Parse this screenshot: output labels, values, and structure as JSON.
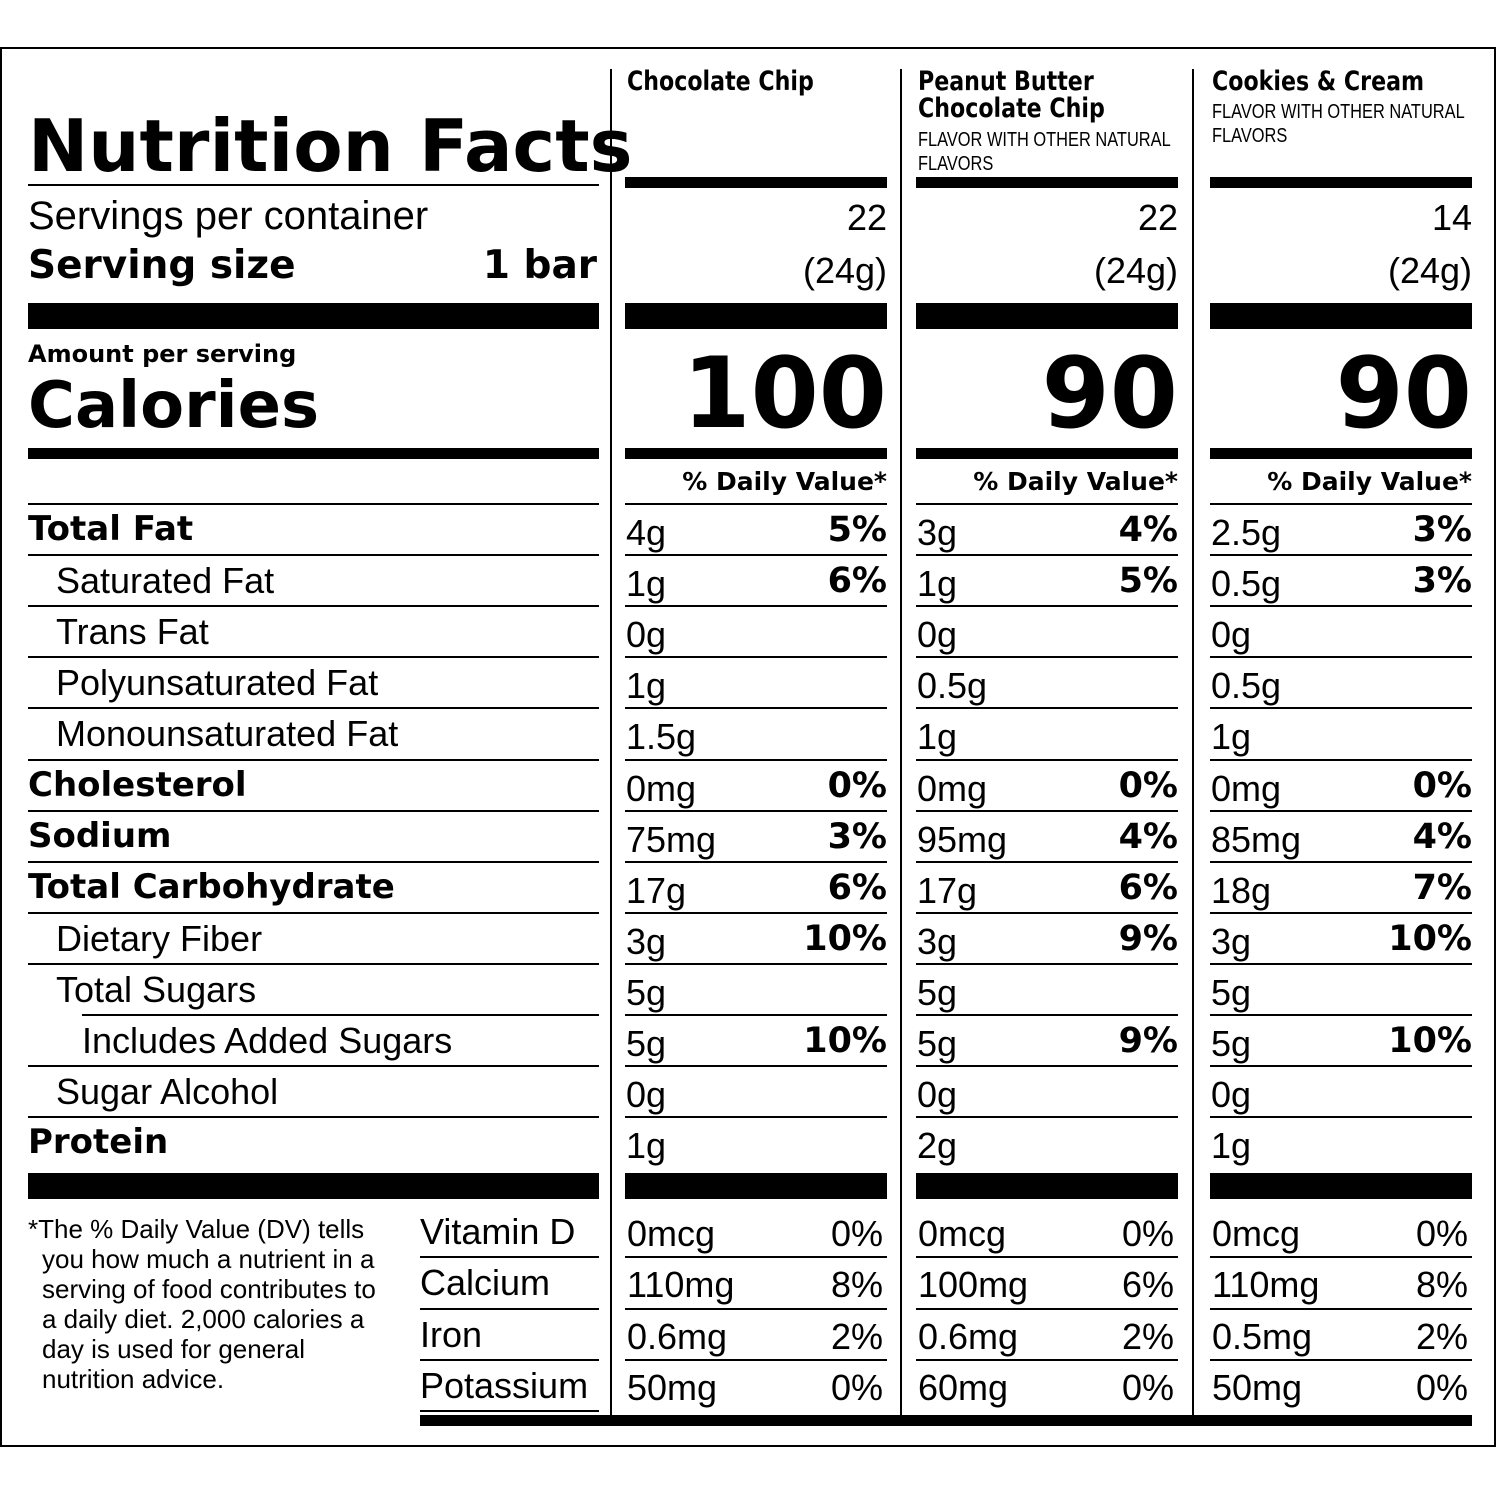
{
  "title": "Nutrition Facts",
  "servings_label": "Servings per container",
  "serving_size_label": "Serving size",
  "serving_size_value": "1 bar",
  "amount_per_serving": "Amount per serving",
  "calories_label": "Calories",
  "daily_value_header": "% Daily Value*",
  "products": [
    {
      "name": "Chocolate  Chip",
      "name2": "",
      "note": "",
      "servings": "22",
      "size": "(24g)",
      "calories": "100"
    },
    {
      "name": "Peanut Butter",
      "name2": "Chocolate Chip",
      "note": "FLAVOR WITH OTHER NATURAL FLAVORS",
      "servings": "22",
      "size": "(24g)",
      "calories": "90"
    },
    {
      "name": "Cookies & Cream",
      "name2": "",
      "note": "FLAVOR WITH OTHER NATURAL FLAVORS",
      "servings": "14",
      "size": "(24g)",
      "calories": "90"
    }
  ],
  "nutrients": [
    {
      "name": "Total Fat",
      "bold": true,
      "indent": 0,
      "values": [
        [
          "4g",
          "5%"
        ],
        [
          "3g",
          "4%"
        ],
        [
          "2.5g",
          "3%"
        ]
      ]
    },
    {
      "name": "Saturated Fat",
      "bold": false,
      "indent": 1,
      "values": [
        [
          "1g",
          "6%"
        ],
        [
          "1g",
          "5%"
        ],
        [
          "0.5g",
          "3%"
        ]
      ]
    },
    {
      "name": "Trans Fat",
      "bold": false,
      "indent": 1,
      "values": [
        [
          "0g",
          ""
        ],
        [
          "0g",
          ""
        ],
        [
          "0g",
          ""
        ]
      ]
    },
    {
      "name": "Polyunsaturated Fat",
      "bold": false,
      "indent": 1,
      "values": [
        [
          "1g",
          ""
        ],
        [
          "0.5g",
          ""
        ],
        [
          "0.5g",
          ""
        ]
      ]
    },
    {
      "name": "Monounsaturated Fat",
      "bold": false,
      "indent": 1,
      "values": [
        [
          "1.5g",
          ""
        ],
        [
          "1g",
          ""
        ],
        [
          "1g",
          ""
        ]
      ]
    },
    {
      "name": "Cholesterol",
      "bold": true,
      "indent": 0,
      "values": [
        [
          "0mg",
          "0%"
        ],
        [
          "0mg",
          "0%"
        ],
        [
          "0mg",
          "0%"
        ]
      ]
    },
    {
      "name": "Sodium",
      "bold": true,
      "indent": 0,
      "values": [
        [
          "75mg",
          "3%"
        ],
        [
          "95mg",
          "4%"
        ],
        [
          "85mg",
          "4%"
        ]
      ]
    },
    {
      "name": "Total Carbohydrate",
      "bold": true,
      "indent": 0,
      "values": [
        [
          "17g",
          "6%"
        ],
        [
          "17g",
          "6%"
        ],
        [
          "18g",
          "7%"
        ]
      ]
    },
    {
      "name": "Dietary Fiber",
      "bold": false,
      "indent": 1,
      "values": [
        [
          "3g",
          "10%"
        ],
        [
          "3g",
          "9%"
        ],
        [
          "3g",
          "10%"
        ]
      ]
    },
    {
      "name": "Total Sugars",
      "bold": false,
      "indent": 1,
      "values": [
        [
          "5g",
          ""
        ],
        [
          "5g",
          ""
        ],
        [
          "5g",
          ""
        ]
      ]
    },
    {
      "name": "Includes Added Sugars",
      "bold": false,
      "indent": 2,
      "values": [
        [
          "5g",
          "10%"
        ],
        [
          "5g",
          "9%"
        ],
        [
          "5g",
          "10%"
        ]
      ]
    },
    {
      "name": "Sugar Alcohol",
      "bold": false,
      "indent": 1,
      "values": [
        [
          "0g",
          ""
        ],
        [
          "0g",
          ""
        ],
        [
          "0g",
          ""
        ]
      ]
    },
    {
      "name": "Protein",
      "bold": true,
      "indent": 0,
      "values": [
        [
          "1g",
          ""
        ],
        [
          "2g",
          ""
        ],
        [
          "1g",
          ""
        ]
      ]
    }
  ],
  "vitamins": [
    {
      "name": "Vitamin D",
      "values": [
        [
          "0mcg",
          "0%"
        ],
        [
          "0mcg",
          "0%"
        ],
        [
          "0mcg",
          "0%"
        ]
      ]
    },
    {
      "name": "Calcium",
      "values": [
        [
          "110mg",
          "8%"
        ],
        [
          "100mg",
          "6%"
        ],
        [
          "110mg",
          "8%"
        ]
      ]
    },
    {
      "name": "Iron",
      "values": [
        [
          "0.6mg",
          "2%"
        ],
        [
          "0.6mg",
          "2%"
        ],
        [
          "0.5mg",
          "2%"
        ]
      ]
    },
    {
      "name": "Potassium",
      "values": [
        [
          "50mg",
          "0%"
        ],
        [
          "60mg",
          "0%"
        ],
        [
          "50mg",
          "0%"
        ]
      ]
    }
  ],
  "footnote": "*The % Daily Value (DV) tells you how much a nutrient in a serving of food contributes to a daily diet. 2,000 calories a day is used for general nutrition advice."
}
